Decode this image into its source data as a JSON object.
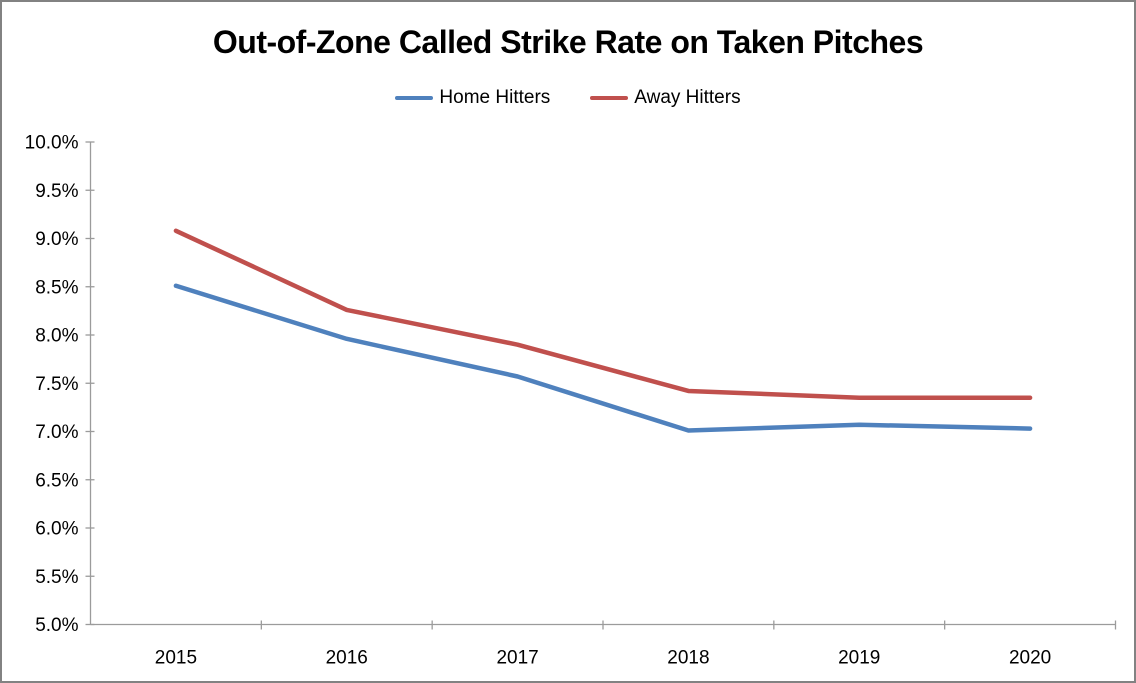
{
  "frame": {
    "background": "#ffffff",
    "border_color": "#828282"
  },
  "chart_data": {
    "type": "line",
    "title": "Out-of-Zone Called Strike Rate on Taken Pitches",
    "categories": [
      "2015",
      "2016",
      "2017",
      "2018",
      "2019",
      "2020"
    ],
    "series": [
      {
        "name": "Home Hitters",
        "color": "#4F81BD",
        "values": [
          8.51,
          7.96,
          7.57,
          7.01,
          7.07,
          7.03
        ]
      },
      {
        "name": "Away Hitters",
        "color": "#C0504D",
        "values": [
          9.08,
          8.26,
          7.9,
          7.42,
          7.35,
          7.35
        ]
      }
    ],
    "y_axis": {
      "min": 5.0,
      "max": 10.0,
      "step": 0.5,
      "tick_labels": [
        "10.0%",
        "9.5%",
        "9.0%",
        "8.5%",
        "8.0%",
        "7.5%",
        "7.0%",
        "6.5%",
        "6.0%",
        "5.5%",
        "5.0%"
      ],
      "unit": "percent"
    },
    "x_axis": {
      "labels": [
        "2015",
        "2016",
        "2017",
        "2018",
        "2019",
        "2020"
      ]
    },
    "legend": {
      "position": "top-center"
    },
    "grid": false,
    "axis_color": "#9b9b9b",
    "text_color": "#000000"
  }
}
